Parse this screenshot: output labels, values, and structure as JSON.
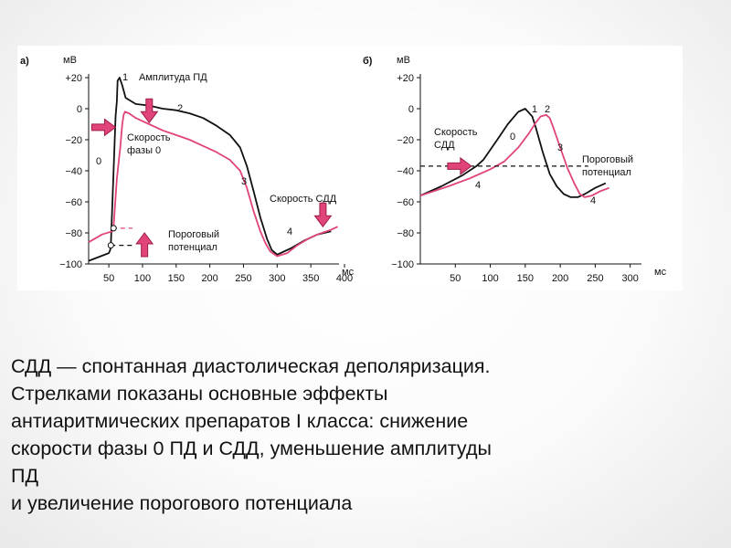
{
  "colors": {
    "control": "#111111",
    "drug": "#e0447a",
    "arrow_fill": "#e0447a",
    "arrow_stroke": "#9e1d45"
  },
  "chart_data": [
    {
      "type": "line",
      "panel_label": "а)",
      "ylabel": "мВ",
      "xlabel": "мс",
      "xlim": [
        20,
        400
      ],
      "ylim": [
        -100,
        20
      ],
      "x_ticks": [
        50,
        100,
        150,
        200,
        250,
        300,
        350,
        400
      ],
      "y_ticks": [
        -100,
        -80,
        -60,
        -40,
        -20,
        0,
        20
      ],
      "y_tick_labels": [
        "−100",
        "−80",
        "−60",
        "−40",
        "−20",
        "0",
        "+20"
      ],
      "grid": false,
      "series": [
        {
          "role": "control",
          "points": [
            [
              20,
              -98
            ],
            [
              50,
              -93
            ],
            [
              52,
              -91
            ],
            [
              53,
              -88
            ],
            [
              57,
              -40
            ],
            [
              60,
              -5
            ],
            [
              62,
              5
            ],
            [
              63,
              18
            ],
            [
              66,
              20
            ],
            [
              70,
              15
            ],
            [
              75,
              7
            ],
            [
              90,
              3
            ],
            [
              110,
              2
            ],
            [
              130,
              0
            ],
            [
              150,
              -1
            ],
            [
              170,
              -3
            ],
            [
              190,
              -6
            ],
            [
              210,
              -11
            ],
            [
              230,
              -17
            ],
            [
              245,
              -25
            ],
            [
              255,
              -37
            ],
            [
              265,
              -53
            ],
            [
              275,
              -70
            ],
            [
              285,
              -84
            ],
            [
              292,
              -91
            ],
            [
              300,
              -94
            ],
            [
              320,
              -90
            ],
            [
              340,
              -85
            ],
            [
              360,
              -81
            ],
            [
              380,
              -79
            ]
          ]
        },
        {
          "role": "drug",
          "points": [
            [
              20,
              -86
            ],
            [
              40,
              -81
            ],
            [
              55,
              -79
            ],
            [
              57,
              -76
            ],
            [
              62,
              -45
            ],
            [
              67,
              -25
            ],
            [
              70,
              -10
            ],
            [
              72,
              -4
            ],
            [
              74,
              -2
            ],
            [
              80,
              -3
            ],
            [
              90,
              -6
            ],
            [
              110,
              -10
            ],
            [
              130,
              -14
            ],
            [
              150,
              -17
            ],
            [
              170,
              -20
            ],
            [
              190,
              -24
            ],
            [
              210,
              -28
            ],
            [
              230,
              -33
            ],
            [
              245,
              -40
            ],
            [
              255,
              -51
            ],
            [
              265,
              -66
            ],
            [
              275,
              -79
            ],
            [
              283,
              -87
            ],
            [
              290,
              -92
            ],
            [
              300,
              -95
            ],
            [
              315,
              -93
            ],
            [
              330,
              -88
            ],
            [
              345,
              -84
            ],
            [
              360,
              -81
            ],
            [
              380,
              -78
            ],
            [
              390,
              -76
            ]
          ]
        },
        {
          "role": "threshold-drug",
          "style": "dashed",
          "points": [
            [
              55,
              -77
            ],
            [
              85,
              -77
            ]
          ]
        },
        {
          "role": "threshold-control",
          "style": "dashed",
          "points": [
            [
              53,
              -88
            ],
            [
              85,
              -88
            ]
          ]
        }
      ],
      "annotations": {
        "amplitude": "Амплитуда ПД",
        "phase0_speed": "Скорость фазы 0",
        "sdd_speed": "Скорость СДД",
        "threshold": "Пороговый потенциал",
        "phase_labels": [
          "0",
          "1",
          "2",
          "3",
          "4"
        ]
      }
    },
    {
      "type": "line",
      "panel_label": "б)",
      "ylabel": "мВ",
      "xlabel": "мс",
      "xlim": [
        0,
        320
      ],
      "ylim": [
        -100,
        20
      ],
      "x_ticks": [
        50,
        100,
        150,
        200,
        250,
        300
      ],
      "y_ticks": [
        -100,
        -80,
        -60,
        -40,
        -20,
        0,
        20
      ],
      "y_tick_labels": [
        "−100",
        "−80",
        "−60",
        "−40",
        "−20",
        "0",
        "+20"
      ],
      "grid": false,
      "series": [
        {
          "role": "control",
          "points": [
            [
              0,
              -56
            ],
            [
              30,
              -50
            ],
            [
              60,
              -43
            ],
            [
              80,
              -37
            ],
            [
              90,
              -33
            ],
            [
              110,
              -20
            ],
            [
              125,
              -10
            ],
            [
              140,
              -2
            ],
            [
              150,
              0
            ],
            [
              160,
              -5
            ],
            [
              165,
              -12
            ],
            [
              175,
              -28
            ],
            [
              185,
              -42
            ],
            [
              195,
              -50
            ],
            [
              205,
              -55
            ],
            [
              215,
              -57
            ],
            [
              225,
              -57
            ],
            [
              235,
              -55
            ],
            [
              250,
              -51
            ],
            [
              265,
              -48
            ]
          ]
        },
        {
          "role": "drug",
          "points": [
            [
              0,
              -56
            ],
            [
              40,
              -50
            ],
            [
              70,
              -45
            ],
            [
              100,
              -39
            ],
            [
              120,
              -34
            ],
            [
              140,
              -25
            ],
            [
              155,
              -16
            ],
            [
              165,
              -9
            ],
            [
              172,
              -5
            ],
            [
              180,
              -4
            ],
            [
              185,
              -6
            ],
            [
              190,
              -12
            ],
            [
              200,
              -25
            ],
            [
              210,
              -38
            ],
            [
              220,
              -48
            ],
            [
              228,
              -55
            ],
            [
              235,
              -57
            ],
            [
              245,
              -56
            ],
            [
              258,
              -53
            ],
            [
              270,
              -51
            ]
          ]
        },
        {
          "role": "threshold",
          "style": "dashed",
          "points": [
            [
              0,
              -37
            ],
            [
              240,
              -37
            ]
          ]
        }
      ],
      "annotations": {
        "sdd_speed": "Скорость СДД",
        "threshold": "Пороговый потенциал",
        "phase_labels": [
          "0",
          "1",
          "2",
          "3",
          "4"
        ]
      }
    }
  ],
  "figure_text": {
    "a": {
      "mv": "мВ",
      "ms": "мс",
      "amplitude": "Амплитуда ПД",
      "phase0_line1": "Скорость",
      "phase0_line2": "фазы 0",
      "sdd": "Скорость СДД",
      "threshold_line1": "Пороговый",
      "threshold_line2": "потенциал",
      "n0": "0",
      "n1": "1",
      "n2": "2",
      "n3": "3",
      "n4": "4"
    },
    "b": {
      "mv": "мВ",
      "ms": "мс",
      "sdd_line1": "Скорость",
      "sdd_line2": "СДД",
      "threshold_line1": "Пороговый",
      "threshold_line2": "потенциал",
      "n0": "0",
      "n1": "1",
      "n2": "2",
      "n3": "3",
      "n4": "4"
    }
  },
  "caption": {
    "lines": [
      "СДД — спонтанная диастолическая деполяризация.",
      "Стрелками показаны основные эффекты",
      "антиаритмических препаратов I класса: снижение",
      "скорости фазы 0 ПД и СДД, уменьшение амплитуды",
      "ПД",
      "и увеличение порогового потенциала"
    ]
  }
}
